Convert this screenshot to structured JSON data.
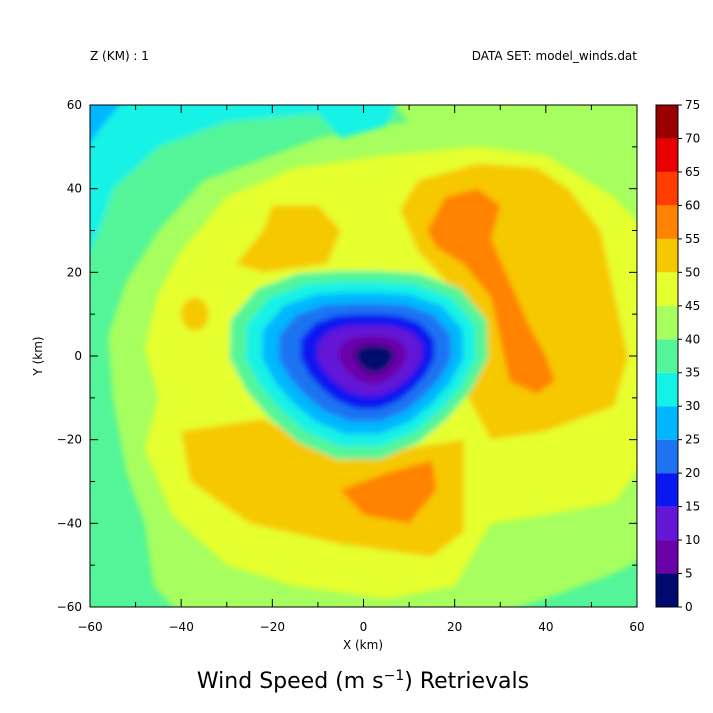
{
  "header": {
    "left_label": "Z (KM) : 1",
    "right_label": "DATA SET: model_winds.dat"
  },
  "title": {
    "main": "Wind Speed (m s",
    "superscript": "−1",
    "tail": ") Retrievals"
  },
  "chart_data": {
    "type": "heatmap",
    "plot_style": "filled contour",
    "xlabel": "X (km)",
    "ylabel": "Y (km)",
    "xlim": [
      -60,
      60
    ],
    "ylim": [
      -60,
      60
    ],
    "x_ticks": [
      -60,
      -40,
      -20,
      0,
      20,
      40,
      60
    ],
    "y_ticks": [
      -60,
      -40,
      -20,
      0,
      20,
      40,
      60
    ],
    "colorbar": {
      "levels": [
        0,
        5,
        10,
        15,
        20,
        25,
        30,
        35,
        40,
        45,
        50,
        55,
        60,
        65,
        70,
        75
      ],
      "colors": [
        "#000a6e",
        "#6a00a8",
        "#6316d6",
        "#0a18f0",
        "#1f73f2",
        "#00b7ff",
        "#13f2e6",
        "#53f598",
        "#a6ff5e",
        "#e6ff2e",
        "#f6c800",
        "#ff8200",
        "#ff3d00",
        "#e80000",
        "#9a0000"
      ]
    },
    "field_features": {
      "minimum_center_km": [
        3,
        0
      ],
      "minimum_speed_band": [
        0,
        5
      ],
      "maxima": [
        {
          "center_km": [
            20,
            30
          ],
          "band": [
            55,
            60
          ]
        },
        {
          "center_km": [
            38,
            -2
          ],
          "band": [
            55,
            60
          ]
        },
        {
          "center_km": [
            5,
            -30
          ],
          "band": [
            55,
            60
          ]
        }
      ]
    }
  }
}
